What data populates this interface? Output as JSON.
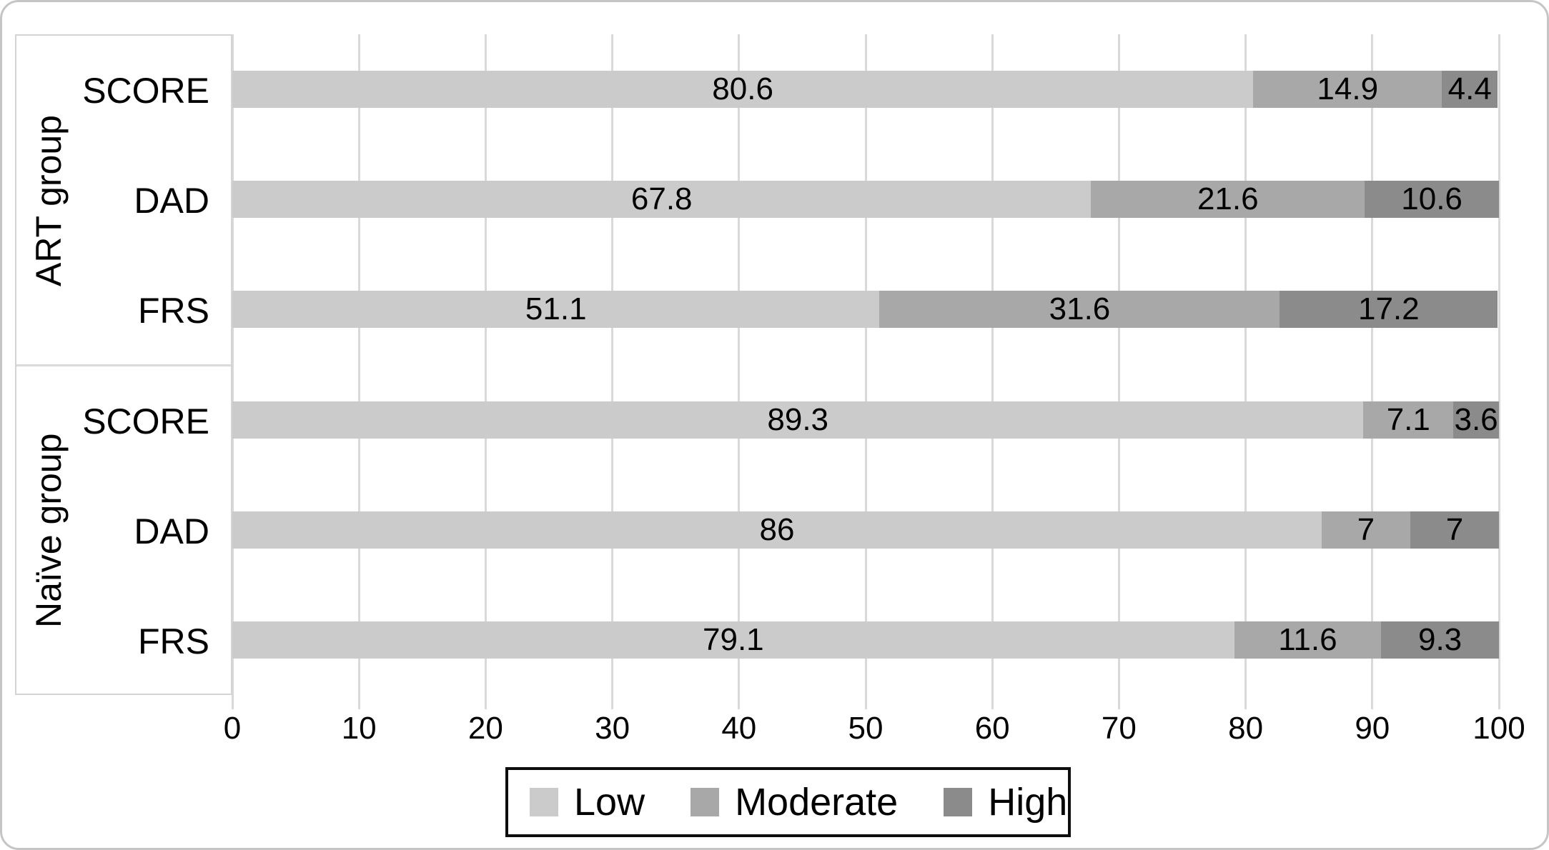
{
  "chart_data": {
    "type": "bar",
    "orientation": "horizontal",
    "stacked": true,
    "title": "",
    "xlabel": "",
    "ylabel": "",
    "x_axis": {
      "min": 0,
      "max": 100,
      "step": 10,
      "tick_labels": [
        "0",
        "10",
        "20",
        "30",
        "40",
        "50",
        "60",
        "70",
        "80",
        "90",
        "100"
      ],
      "grid": true
    },
    "series_names": [
      "Low",
      "Moderate",
      "High"
    ],
    "series_colors": [
      "#cbcbcb",
      "#a8a8a8",
      "#8b8b8b"
    ],
    "groups": [
      {
        "label": "ART group",
        "rows": [
          {
            "category": "SCORE",
            "values": [
              80.6,
              14.9,
              4.4
            ],
            "value_labels": [
              "80.6",
              "14.9",
              "4.4"
            ]
          },
          {
            "category": "DAD",
            "values": [
              67.8,
              21.6,
              10.6
            ],
            "value_labels": [
              "67.8",
              "21.6",
              "10.6"
            ]
          },
          {
            "category": "FRS",
            "values": [
              51.1,
              31.6,
              17.2
            ],
            "value_labels": [
              "51.1",
              "31.6",
              "17.2"
            ]
          }
        ]
      },
      {
        "label": "Naïve group",
        "rows": [
          {
            "category": "SCORE",
            "values": [
              89.3,
              7.1,
              3.6
            ],
            "value_labels": [
              "89.3",
              "7.1",
              "3.6"
            ]
          },
          {
            "category": "DAD",
            "values": [
              86,
              7,
              7
            ],
            "value_labels": [
              "86",
              "7",
              "7"
            ]
          },
          {
            "category": "FRS",
            "values": [
              79.1,
              11.6,
              9.3
            ],
            "value_labels": [
              "79.1",
              "11.6",
              "9.3"
            ]
          }
        ]
      }
    ],
    "legend": {
      "position": "bottom",
      "entries": [
        "Low",
        "Moderate",
        "High"
      ]
    },
    "colors": {
      "gridline": "#d9d9d9",
      "axis_box_border": "#d4d4d4",
      "group_divider": "#d9d9d9",
      "legend_border": "#0d0d0d",
      "label_text": "#000000",
      "background": "#ffffff"
    }
  }
}
